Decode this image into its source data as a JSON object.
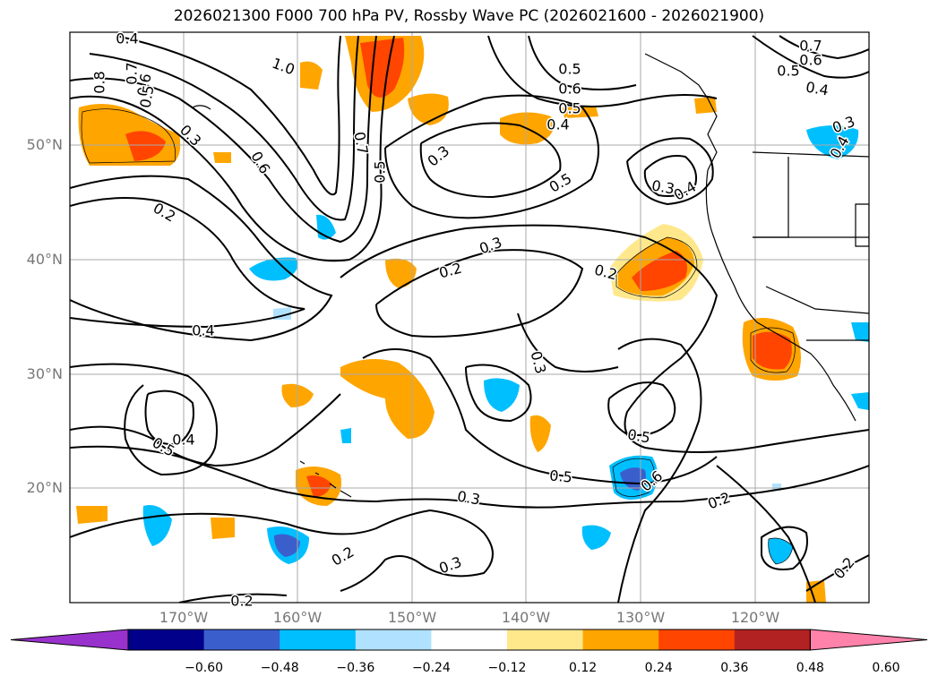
{
  "title": "2026021300 F000 700 hPa PV, Rossby Wave PC (2026021600 - 2026021900)",
  "lat_labels": [
    "50°N",
    "40°N",
    "30°N",
    "20°N"
  ],
  "lon_labels": [
    "170°W",
    "160°W",
    "150°W",
    "140°W",
    "130°W",
    "120°W"
  ],
  "colorbar": {
    "ticks": [
      "−0.60",
      "−0.48",
      "−0.36",
      "−0.24",
      "−0.12",
      "0.12",
      "0.24",
      "0.36",
      "0.48",
      "0.60"
    ],
    "colors": [
      "#9932cc",
      "#00008b",
      "#3a5fcd",
      "#00bfff",
      "#b0e2ff",
      "#ffffff",
      "#ffe88c",
      "#ffa500",
      "#ff4500",
      "#b22222",
      "#ff82ab"
    ]
  },
  "contour_labels": [
    "0.4",
    "0.8",
    "0.7",
    "0.6",
    "0.5",
    "1.0",
    "0.3",
    "0.2",
    "0.6",
    "0.7",
    "0.5",
    "0.3",
    "0.5",
    "0.6",
    "0.5",
    "0.4",
    "0.7",
    "0.6",
    "0.5",
    "0.4",
    "0.3",
    "0.4",
    "0.5",
    "0.2",
    "0.3",
    "0.4",
    "0.3",
    "0.2",
    "0.4",
    "0.3",
    "0.5",
    "0.4",
    "0.5",
    "0.5",
    "0.6",
    "0.3",
    "0.2",
    "0.2",
    "0.3",
    "0.2",
    "0.2"
  ]
}
